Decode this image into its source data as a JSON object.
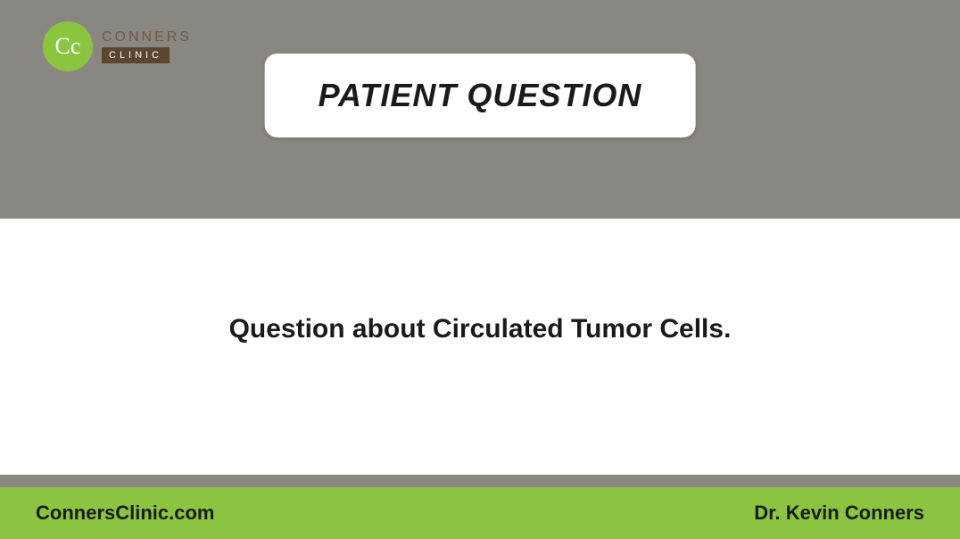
{
  "colors": {
    "top_bg": "#8a8782",
    "middle_bg": "#ffffff",
    "divider_bg": "#8a8782",
    "bottom_bg": "#8bc53f",
    "logo_circle_bg": "#8bc53f",
    "logo_circle_text": "#ffffff",
    "logo_name_color": "#6b5a3f",
    "logo_sub_bg": "#5b4630",
    "logo_sub_text": "#ffffff",
    "title_box_bg": "#ffffff",
    "title_text_color": "#1a1a1a",
    "question_text_color": "#1a1a1a",
    "footer_text_color": "#1a1a1a"
  },
  "logo": {
    "initials": "Cc",
    "name": "CONNERS",
    "subtitle": "CLINIC"
  },
  "title": "PATIENT QUESTION",
  "question": "Question about Circulated Tumor Cells.",
  "footer": {
    "left": "ConnersClinic.com",
    "right": "Dr. Kevin Conners"
  }
}
